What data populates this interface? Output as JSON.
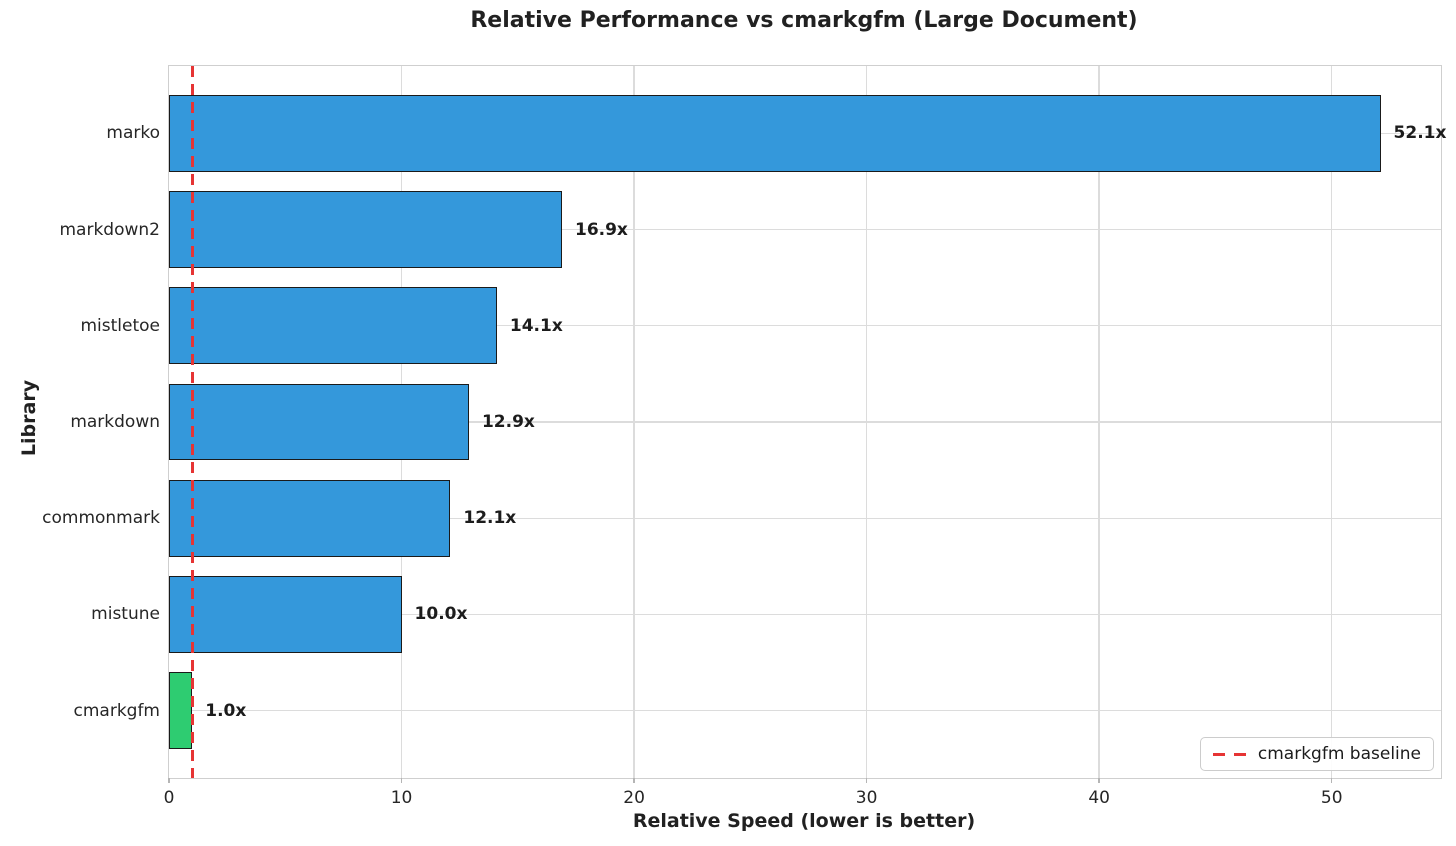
{
  "chart_data": {
    "type": "bar",
    "orientation": "horizontal",
    "title": "Relative Performance vs cmarkgfm (Large Document)",
    "xlabel": "Relative Speed (lower is better)",
    "ylabel": "Library",
    "categories": [
      "marko",
      "markdown2",
      "mistletoe",
      "markdown",
      "commonmark",
      "mistune",
      "cmarkgfm"
    ],
    "values": [
      52.1,
      16.9,
      14.1,
      12.9,
      12.1,
      10.0,
      1.0
    ],
    "value_labels": [
      "52.1x",
      "16.9x",
      "14.1x",
      "12.9x",
      "12.1x",
      "10.0x",
      "1.0x"
    ],
    "bar_colors": [
      "#3498db",
      "#3498db",
      "#3498db",
      "#3498db",
      "#3498db",
      "#3498db",
      "#2ecc71"
    ],
    "edge_color": "#1a1a1a",
    "xlim": [
      0,
      54.7
    ],
    "x_ticks": [
      0,
      10,
      20,
      30,
      40,
      50
    ],
    "grid": true,
    "legend_position": "lower right",
    "baseline": {
      "value": 1.0,
      "color": "#e63434",
      "style": "dashed",
      "label": "cmarkgfm baseline"
    }
  }
}
